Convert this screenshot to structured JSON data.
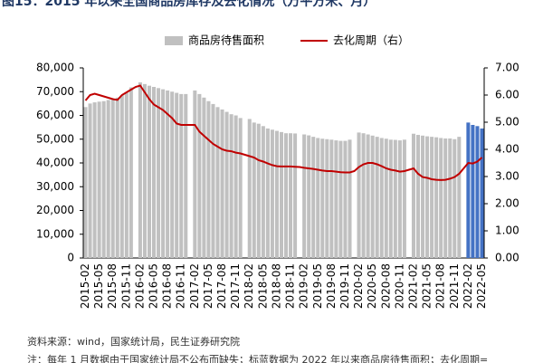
{
  "chart_data": {
    "type": "bar_line",
    "title": "图15：2015 年以来全国商品房库存及去化情况（万平方米、月）",
    "source": "资料来源：wind，国家统计局，民生证券研究院",
    "note": "注：每年 1 月数据由于国家统计局不公布而缺失；标蓝数据为 2022 年以来商品房待售面积；去化周期=",
    "categories": [
      "2015-02",
      null,
      null,
      "2015-05",
      null,
      null,
      "2015-08",
      null,
      null,
      "2015-11",
      null,
      null,
      "2016-02",
      null,
      null,
      "2016-05",
      null,
      null,
      "2016-08",
      null,
      null,
      "2016-11",
      null,
      null,
      "2017-02",
      null,
      null,
      "2017-05",
      null,
      null,
      "2017-08",
      null,
      null,
      "2017-11",
      null,
      null,
      "2018-02",
      null,
      null,
      "2018-05",
      null,
      null,
      "2018-08",
      null,
      null,
      "2018-11",
      null,
      null,
      "2019-02",
      null,
      null,
      "2019-05",
      null,
      null,
      "2019-08",
      null,
      null,
      "2019-11",
      null,
      null,
      "2020-02",
      null,
      null,
      "2020-05",
      null,
      null,
      "2020-08",
      null,
      null,
      "2020-11",
      null,
      null,
      "2021-02",
      null,
      null,
      "2021-05",
      null,
      null,
      "2021-08",
      null,
      null,
      "2021-11",
      null,
      null,
      "2022-02",
      null,
      null,
      "2022-05"
    ],
    "series": [
      {
        "name": "商品房待售面积",
        "type": "bar",
        "color": "#c0c0c0",
        "colors": [
          "#c0c0c0",
          "#c0c0c0",
          "#c0c0c0",
          "#c0c0c0",
          "#c0c0c0",
          "#c0c0c0",
          "#c0c0c0",
          "#c0c0c0",
          "#c0c0c0",
          "#c0c0c0",
          "#c0c0c0",
          "#c0c0c0",
          "#c0c0c0",
          "#c0c0c0",
          "#c0c0c0",
          "#c0c0c0",
          "#c0c0c0",
          "#c0c0c0",
          "#c0c0c0",
          "#c0c0c0",
          "#c0c0c0",
          "#c0c0c0",
          "#c0c0c0",
          "#c0c0c0",
          "#c0c0c0",
          "#c0c0c0",
          "#c0c0c0",
          "#c0c0c0",
          "#c0c0c0",
          "#c0c0c0",
          "#c0c0c0",
          "#c0c0c0",
          "#c0c0c0",
          "#c0c0c0",
          "#c0c0c0",
          "#c0c0c0",
          "#c0c0c0",
          "#c0c0c0",
          "#c0c0c0",
          "#c0c0c0",
          "#c0c0c0",
          "#c0c0c0",
          "#c0c0c0",
          "#c0c0c0",
          "#c0c0c0",
          "#c0c0c0",
          "#c0c0c0",
          "#c0c0c0",
          "#c0c0c0",
          "#c0c0c0",
          "#c0c0c0",
          "#c0c0c0",
          "#c0c0c0",
          "#c0c0c0",
          "#c0c0c0",
          "#c0c0c0",
          "#c0c0c0",
          "#c0c0c0",
          "#c0c0c0",
          "#c0c0c0",
          "#c0c0c0",
          "#c0c0c0",
          "#c0c0c0",
          "#c0c0c0",
          "#c0c0c0",
          "#c0c0c0",
          "#c0c0c0",
          "#c0c0c0",
          "#c0c0c0",
          "#c0c0c0",
          "#c0c0c0",
          "#c0c0c0",
          "#c0c0c0",
          "#c0c0c0",
          "#c0c0c0",
          "#c0c0c0",
          "#c0c0c0",
          "#c0c0c0",
          "#c0c0c0",
          "#c0c0c0",
          "#c0c0c0",
          "#c0c0c0",
          "#c0c0c0",
          "#c0c0c0",
          "#4472c4",
          "#4472c4",
          "#4472c4",
          "#4472c4"
        ],
        "values": [
          63500,
          65000,
          65500,
          65800,
          66000,
          66500,
          67000,
          67500,
          68500,
          69500,
          71800,
          null,
          73900,
          73200,
          72500,
          72000,
          71500,
          71000,
          70500,
          70000,
          69500,
          69000,
          69000,
          null,
          70500,
          69000,
          67500,
          66000,
          64800,
          63500,
          62500,
          61500,
          60500,
          60000,
          58900,
          null,
          58500,
          57000,
          56500,
          55500,
          54500,
          54000,
          53500,
          53000,
          52500,
          52500,
          52400,
          null,
          52000,
          51600,
          51000,
          50500,
          50200,
          50000,
          49800,
          49500,
          49300,
          49300,
          49800,
          null,
          52800,
          52500,
          52000,
          51500,
          51000,
          50500,
          50200,
          49800,
          49700,
          49500,
          49800,
          null,
          52300,
          51800,
          51500,
          51200,
          51000,
          50800,
          50500,
          50300,
          50300,
          50000,
          51000,
          null,
          57000,
          56000,
          55500,
          54500
        ]
      },
      {
        "name": "去化周期（右）",
        "type": "line",
        "axis": "y2",
        "color": "#c00000",
        "values": [
          5.8,
          6.0,
          6.05,
          6.0,
          5.95,
          5.9,
          5.85,
          5.82,
          6.0,
          6.1,
          6.2,
          6.3,
          6.35,
          6.1,
          5.85,
          5.65,
          5.55,
          5.45,
          5.3,
          5.15,
          4.95,
          4.9,
          4.9,
          4.9,
          4.9,
          4.65,
          4.5,
          4.35,
          4.2,
          4.1,
          4.0,
          3.95,
          3.93,
          3.88,
          3.85,
          3.8,
          3.75,
          3.7,
          3.6,
          3.55,
          3.48,
          3.42,
          3.38,
          3.37,
          3.37,
          3.37,
          3.36,
          3.35,
          3.32,
          3.3,
          3.28,
          3.25,
          3.22,
          3.2,
          3.2,
          3.18,
          3.16,
          3.15,
          3.15,
          3.2,
          3.35,
          3.45,
          3.5,
          3.5,
          3.45,
          3.38,
          3.3,
          3.25,
          3.22,
          3.18,
          3.2,
          3.25,
          3.3,
          3.1,
          2.98,
          2.95,
          2.9,
          2.88,
          2.87,
          2.88,
          2.92,
          2.98,
          3.1,
          3.3,
          3.5,
          3.48,
          3.55,
          3.7
        ]
      }
    ],
    "ylim": [
      0,
      80000
    ],
    "yticks": [
      0,
      {
        "value": 10000,
        "label": "10,000"
      },
      {
        "value": 20000,
        "label": "20,000"
      },
      {
        "value": 30000,
        "label": "30,000"
      },
      {
        "value": 40000,
        "label": "40,000"
      },
      {
        "value": 50000,
        "label": "50,000"
      },
      {
        "value": 60000,
        "label": "60,000"
      },
      {
        "value": 70000,
        "label": "70,000"
      },
      {
        "value": 80000,
        "label": "80,000"
      }
    ],
    "y2lim": [
      0,
      7
    ],
    "y2ticks": [
      {
        "value": 0,
        "label": "0.00"
      },
      {
        "value": 1,
        "label": "1.00"
      },
      {
        "value": 2,
        "label": "2.00"
      },
      {
        "value": 3,
        "label": "3.00"
      },
      {
        "value": 4,
        "label": "4.00"
      },
      {
        "value": 5,
        "label": "5.00"
      },
      {
        "value": 6,
        "label": "6.00"
      },
      {
        "value": 7,
        "label": "7.00"
      }
    ],
    "legend": "top"
  }
}
